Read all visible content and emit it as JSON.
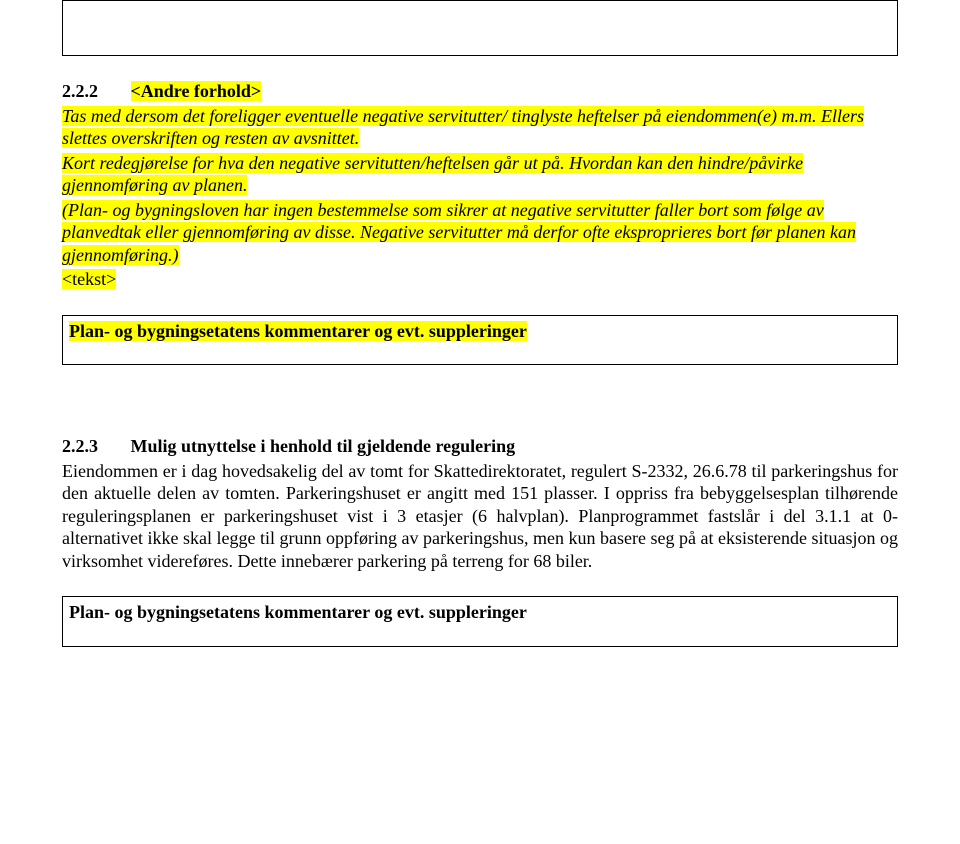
{
  "section1": {
    "number": "2.2.2",
    "title": "<Andre forhold>",
    "line1": "Tas med dersom det foreligger eventuelle negative servitutter/ tinglyste heftelser på eiendommen(e) m.m. Ellers slettes overskriften og resten av avsnittet.",
    "line2": "Kort redegjørelse for hva den negative servitutten/heftelsen går ut på. Hvordan kan den hindre/påvirke gjennomføring av planen.",
    "line3": "(Plan- og bygningsloven har ingen bestemmelse som sikrer at negative servitutter faller bort som følge av planvedtak eller gjennomføring av disse. Negative servitutter må derfor ofte eksproprieres bort før planen kan gjennomføring.)",
    "tekst": "<tekst>",
    "boxTitle": "Plan- og bygningsetatens kommentarer og evt. suppleringer"
  },
  "section2": {
    "number": "2.2.3",
    "title": "Mulig utnyttelse i henhold til gjeldende regulering",
    "body": "Eiendommen er i dag hovedsakelig del av tomt for Skattedirektoratet, regulert S-2332, 26.6.78 til parkeringshus for den aktuelle delen av tomten. Parkeringshuset er angitt med 151 plasser. I oppriss fra bebyggelsesplan tilhørende reguleringsplanen er parkeringshuset vist i 3 etasjer (6 halvplan). Planprogrammet fastslår i del 3.1.1 at 0-alternativet ikke skal legge til grunn oppføring av parkeringshus, men kun basere seg på at eksisterende situasjon og virksomhet videreføres. Dette innebærer parkering på terreng for 68 biler.",
    "boxTitle": "Plan- og bygningsetatens kommentarer og evt. suppleringer"
  },
  "colors": {
    "highlight": "#ffff00",
    "text": "#000000",
    "background": "#ffffff",
    "border": "#000000"
  },
  "typography": {
    "family": "Times New Roman",
    "body_size_pt": 14,
    "heading_weight": "bold"
  }
}
